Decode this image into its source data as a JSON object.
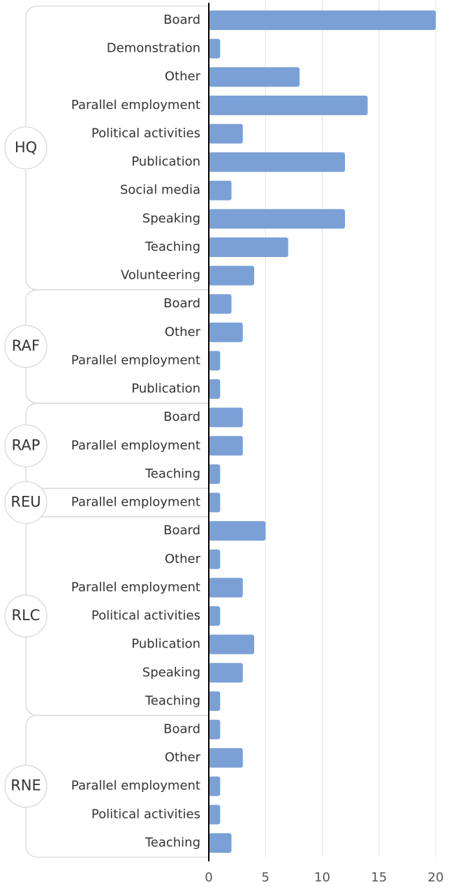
{
  "chart_data": {
    "type": "bar",
    "color": "#7ba0d6",
    "xlim": [
      0,
      20
    ],
    "xticks": [
      0,
      5,
      10,
      15,
      20
    ],
    "grid": true,
    "groups": [
      {
        "name": "HQ",
        "categories": [
          "Board",
          "Demonstration",
          "Other",
          "Parallel employment",
          "Political activities",
          "Publication",
          "Social media",
          "Speaking",
          "Teaching",
          "Volunteering"
        ],
        "values": [
          20,
          1,
          8,
          14,
          3,
          12,
          2,
          12,
          7,
          4
        ]
      },
      {
        "name": "RAF",
        "categories": [
          "Board",
          "Other",
          "Parallel employment",
          "Publication"
        ],
        "values": [
          2,
          3,
          1,
          1
        ]
      },
      {
        "name": "RAP",
        "categories": [
          "Board",
          "Parallel employment",
          "Teaching"
        ],
        "values": [
          3,
          3,
          1
        ]
      },
      {
        "name": "REU",
        "categories": [
          "Parallel employment"
        ],
        "values": [
          1
        ]
      },
      {
        "name": "RLC",
        "categories": [
          "Board",
          "Other",
          "Parallel employment",
          "Political activities",
          "Publication",
          "Speaking",
          "Teaching"
        ],
        "values": [
          5,
          1,
          3,
          1,
          4,
          3,
          1
        ]
      },
      {
        "name": "RNE",
        "categories": [
          "Board",
          "Other",
          "Parallel employment",
          "Political activities",
          "Teaching"
        ],
        "values": [
          1,
          3,
          1,
          1,
          2
        ]
      }
    ]
  }
}
